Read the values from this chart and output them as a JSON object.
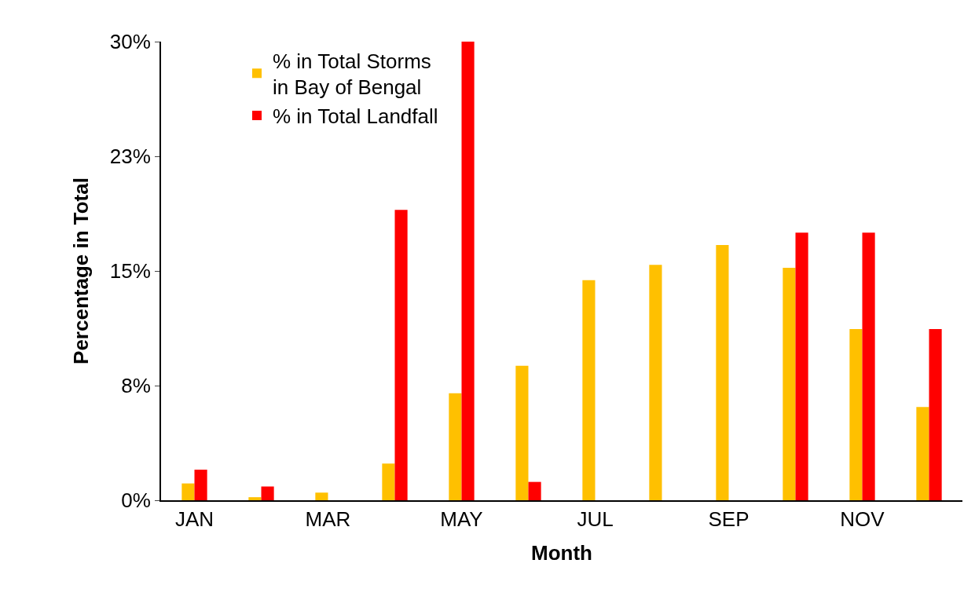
{
  "chart_data": {
    "type": "bar",
    "xlabel": "Month",
    "ylabel": "Percentage in Total",
    "categories": [
      "JAN",
      null,
      "MAR",
      null,
      "MAY",
      null,
      "JUL",
      null,
      "SEP",
      null,
      "NOV",
      null
    ],
    "series": [
      {
        "name": "% in Total Storms in Bay of Bengal",
        "color": "#ffc000",
        "values": [
          1.1,
          0.2,
          0.5,
          2.4,
          7.0,
          8.8,
          14.4,
          15.4,
          16.7,
          15.2,
          11.2,
          6.1
        ]
      },
      {
        "name": "% in Total Landfall",
        "color": "#ff0000",
        "values": [
          2.0,
          0.9,
          0,
          19.0,
          30,
          1.2,
          0,
          0,
          0,
          17.5,
          17.5,
          11.2
        ]
      }
    ],
    "ylim": [
      0,
      30
    ],
    "yticks": [
      {
        "value": 0,
        "label": "0%"
      },
      {
        "value": 7.5,
        "label": "8%"
      },
      {
        "value": 15,
        "label": "15%"
      },
      {
        "value": 22.5,
        "label": "23%"
      },
      {
        "value": 30,
        "label": "30%"
      }
    ],
    "grid": false,
    "legend": "top left"
  }
}
